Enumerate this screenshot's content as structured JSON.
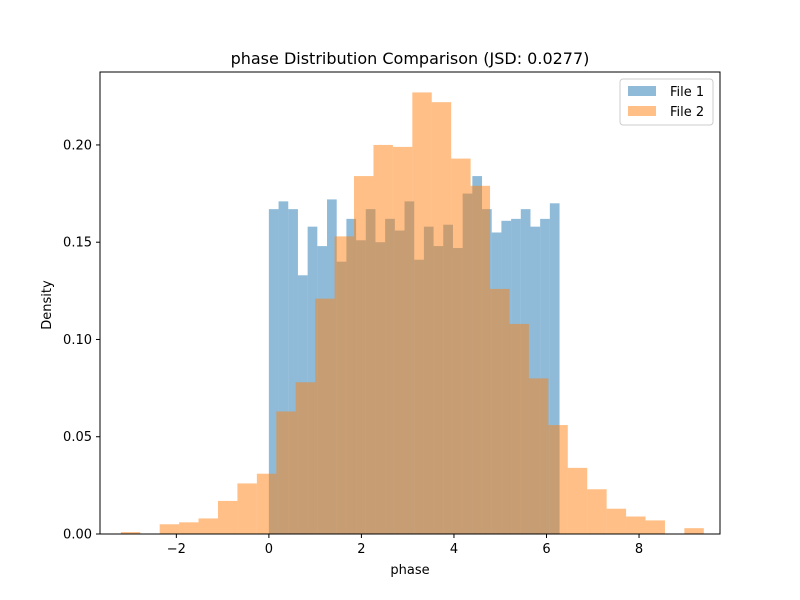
{
  "chart_data": {
    "type": "histogram",
    "title": "phase Distribution Comparison (JSD: 0.0277)",
    "xlabel": "phase",
    "ylabel": "Density",
    "xlim": [
      -3.65,
      9.75
    ],
    "ylim": [
      0,
      0.2375
    ],
    "xticks": [
      -2,
      0,
      2,
      4,
      6,
      8
    ],
    "xtick_labels": [
      "−2",
      "0",
      "2",
      "4",
      "6",
      "8"
    ],
    "yticks": [
      0.0,
      0.05,
      0.1,
      0.15,
      0.2
    ],
    "ytick_labels": [
      "0.00",
      "0.05",
      "0.10",
      "0.15",
      "0.20"
    ],
    "legend_position": "top-right",
    "series": [
      {
        "name": "File 1",
        "color": "#1f77b4",
        "opacity": 0.5,
        "bin_start": 0.0,
        "bin_width": 0.2094,
        "values": [
          0.167,
          0.171,
          0.167,
          0.133,
          0.158,
          0.148,
          0.172,
          0.14,
          0.162,
          0.151,
          0.167,
          0.15,
          0.162,
          0.156,
          0.171,
          0.141,
          0.158,
          0.148,
          0.159,
          0.147,
          0.175,
          0.184,
          0.167,
          0.155,
          0.161,
          0.162,
          0.167,
          0.158,
          0.162,
          0.17
        ]
      },
      {
        "name": "File 2",
        "color": "#ff7f0e",
        "opacity": 0.5,
        "bin_start": -3.2,
        "bin_width": 0.42,
        "values": [
          0.001,
          0.0,
          0.005,
          0.006,
          0.008,
          0.017,
          0.026,
          0.031,
          0.063,
          0.078,
          0.121,
          0.153,
          0.184,
          0.2,
          0.199,
          0.227,
          0.222,
          0.193,
          0.179,
          0.126,
          0.108,
          0.08,
          0.056,
          0.034,
          0.023,
          0.013,
          0.009,
          0.007,
          0.0,
          0.003
        ]
      }
    ]
  }
}
